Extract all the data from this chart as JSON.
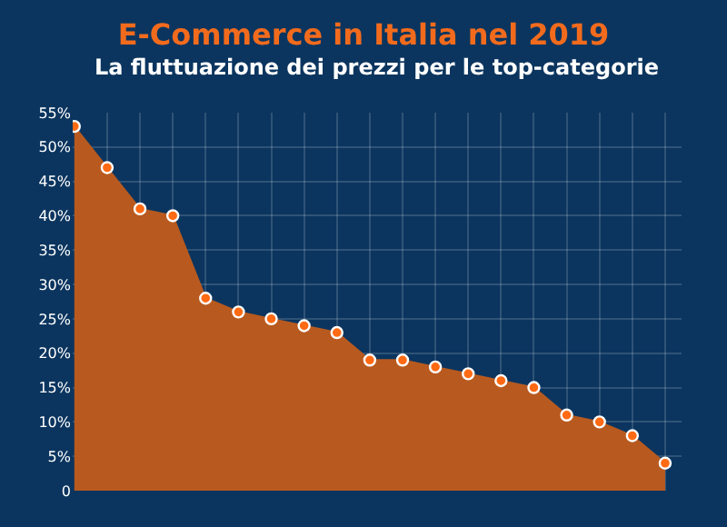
{
  "chart_data": {
    "type": "area",
    "title": "E-Commerce in Italia nel 2019",
    "subtitle": "La fluttuazione dei prezzi per le top-categorie",
    "categories": [
      null,
      null,
      null,
      null,
      null,
      null,
      null,
      null,
      null,
      null,
      null,
      null,
      null,
      null,
      null,
      null,
      null,
      null,
      null
    ],
    "series": [
      {
        "color": "#b85a1f",
        "values": [
          53,
          47,
          41,
          40,
          28,
          26,
          25,
          24,
          23,
          19,
          19,
          18,
          17,
          16,
          15,
          11,
          10,
          8,
          4
        ]
      }
    ],
    "ylim": [
      0,
      55
    ],
    "yticks": [
      {
        "value": 0,
        "label": "0"
      },
      {
        "value": 5,
        "label": "5%"
      },
      {
        "value": 10,
        "label": "10%"
      },
      {
        "value": 15,
        "label": "15%"
      },
      {
        "value": 20,
        "label": "20%"
      },
      {
        "value": 25,
        "label": "25%"
      },
      {
        "value": 30,
        "label": "30%"
      },
      {
        "value": 35,
        "label": "35%"
      },
      {
        "value": 40,
        "label": "40%"
      },
      {
        "value": 45,
        "label": "45%"
      },
      {
        "value": 50,
        "label": "50%"
      },
      {
        "value": 55,
        "label": "55%"
      }
    ],
    "grid": true,
    "marker": "circle"
  }
}
